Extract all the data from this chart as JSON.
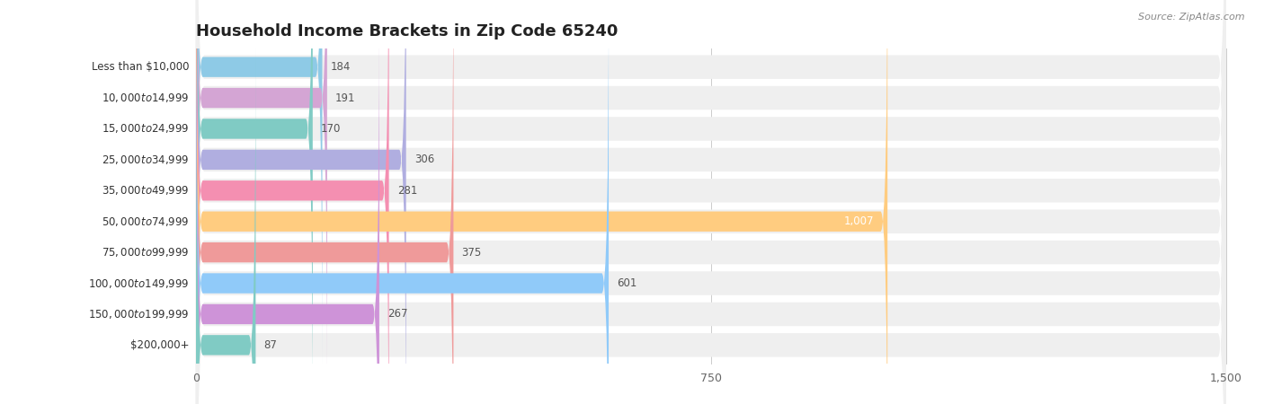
{
  "title": "Household Income Brackets in Zip Code 65240",
  "source": "Source: ZipAtlas.com",
  "categories": [
    "Less than $10,000",
    "$10,000 to $14,999",
    "$15,000 to $24,999",
    "$25,000 to $34,999",
    "$35,000 to $49,999",
    "$50,000 to $74,999",
    "$75,000 to $99,999",
    "$100,000 to $149,999",
    "$150,000 to $199,999",
    "$200,000+"
  ],
  "values": [
    184,
    191,
    170,
    306,
    281,
    1007,
    375,
    601,
    267,
    87
  ],
  "bar_colors": [
    "#8ecae6",
    "#d4a5d4",
    "#80cbc4",
    "#b0aee0",
    "#f48fb1",
    "#ffcc80",
    "#ef9a9a",
    "#90caf9",
    "#ce93d8",
    "#80cbc4"
  ],
  "xlim": [
    0,
    1500
  ],
  "xticks": [
    0,
    750,
    1500
  ],
  "bg_color": "#ffffff",
  "row_bg_color": "#efefef",
  "title_fontsize": 13,
  "label_fontsize": 8.5,
  "value_fontsize": 8.5,
  "bar_height": 0.65,
  "value_label_color_default": "#555555",
  "value_label_color_highlight": "#ffffff"
}
